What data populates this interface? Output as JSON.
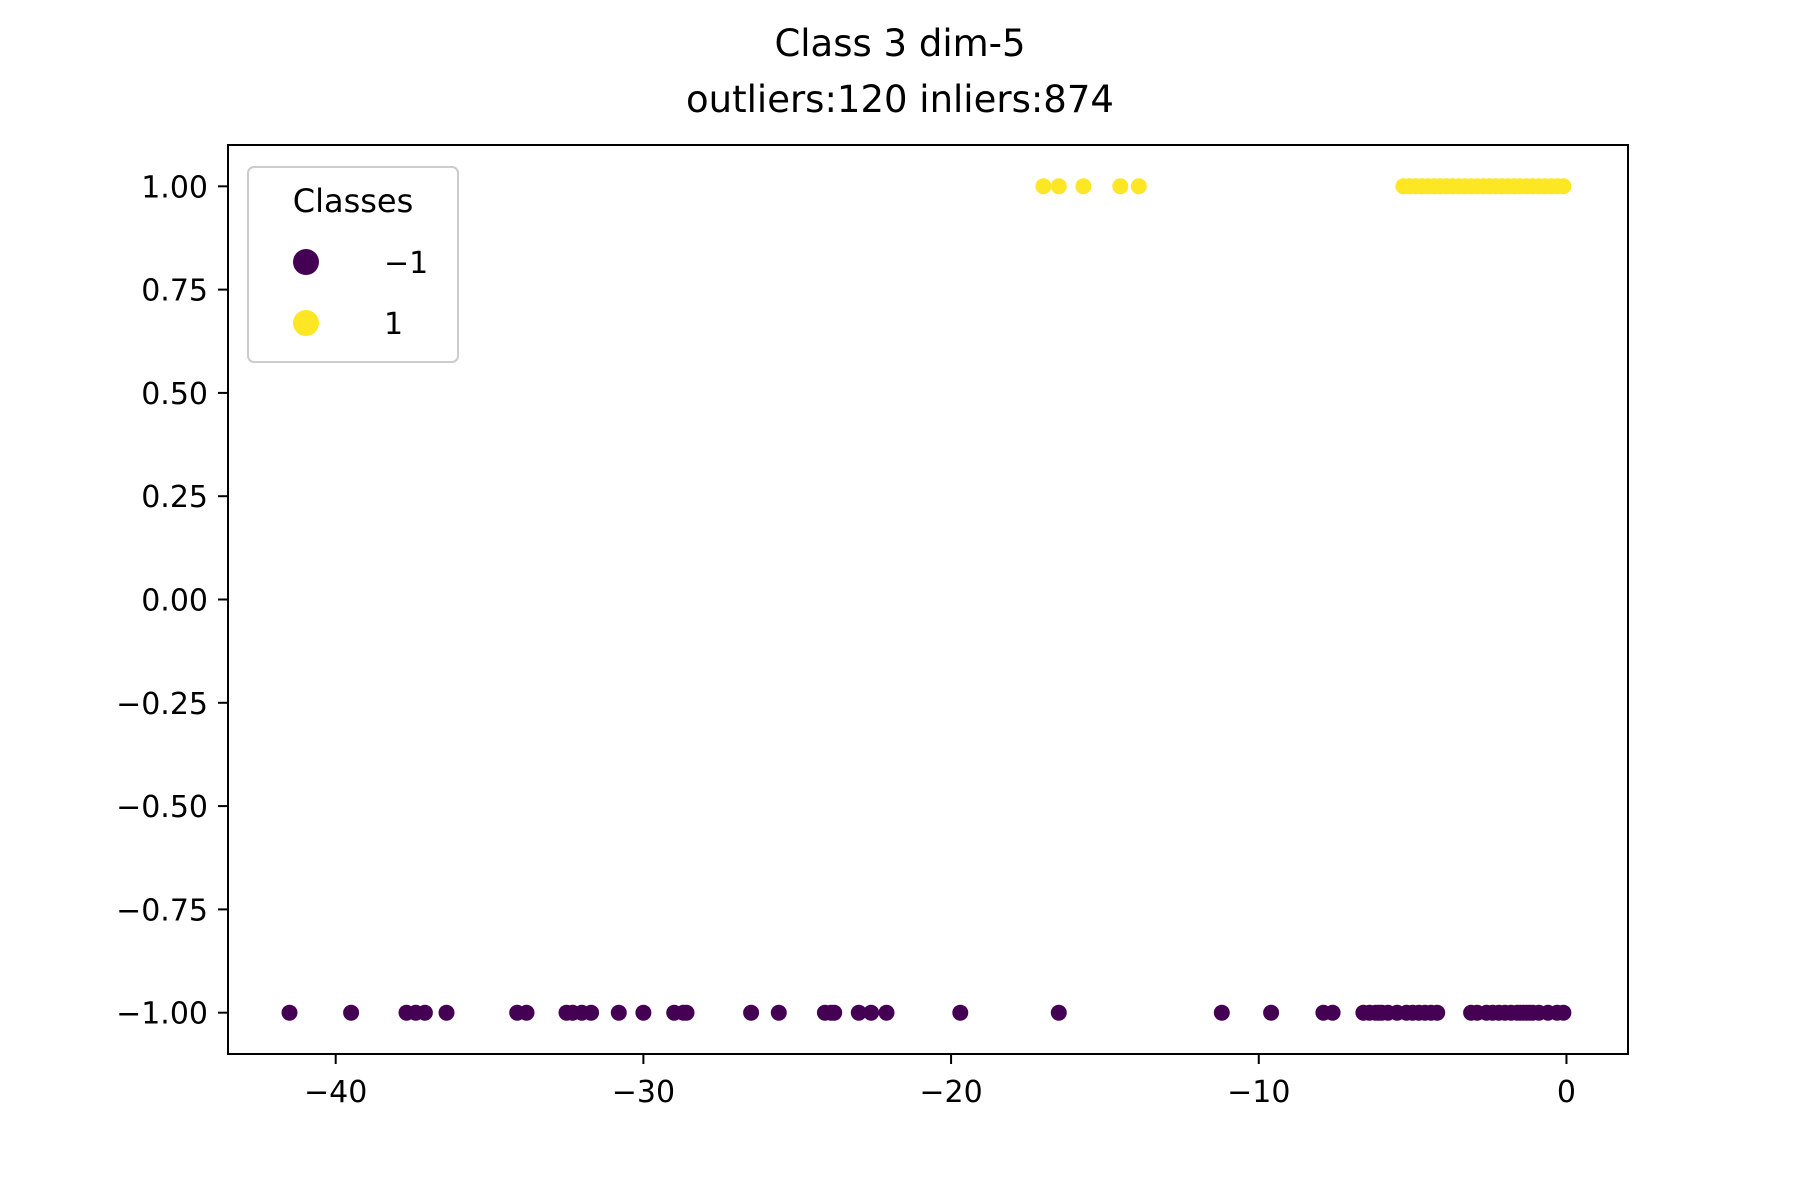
{
  "chart_data": {
    "type": "scatter",
    "title": "Class 3 dim-5",
    "subtitle": "outliers:120  inliers:874",
    "xlim": [
      -43.5,
      2.0
    ],
    "ylim": [
      -1.1,
      1.1
    ],
    "x_ticks": [
      -40,
      -30,
      -20,
      -10,
      0
    ],
    "x_tick_labels": [
      "−40",
      "−30",
      "−20",
      "−10",
      "0"
    ],
    "y_ticks": [
      1.0,
      0.75,
      0.5,
      0.25,
      0.0,
      -0.25,
      -0.5,
      -0.75,
      -1.0
    ],
    "y_tick_labels": [
      "1.00",
      "0.75",
      "0.50",
      "0.25",
      "0.00",
      "−0.25",
      "−0.50",
      "−0.75",
      "−1.00"
    ],
    "grid": false,
    "legend": {
      "title": "Classes",
      "placement": "top-left",
      "entries": [
        {
          "label": "−1",
          "color": "#440154"
        },
        {
          "label": "1",
          "color": "#fde725"
        }
      ]
    },
    "series": [
      {
        "class": -1,
        "color": "#440154",
        "y": -1.0,
        "x": [
          -41.5,
          -39.5,
          -37.7,
          -37.4,
          -37.1,
          -36.4,
          -34.1,
          -33.8,
          -32.5,
          -32.3,
          -32.0,
          -31.7,
          -30.8,
          -30.0,
          -29.0,
          -28.7,
          -28.6,
          -26.5,
          -25.6,
          -24.1,
          -23.9,
          -23.8,
          -23.0,
          -22.6,
          -22.1,
          -19.7,
          -16.5,
          -11.2,
          -9.6,
          -7.9,
          -7.6,
          -6.6,
          -6.4,
          -6.2,
          -6.1,
          -6.0,
          -5.8,
          -5.5,
          -5.2,
          -5.0,
          -4.8,
          -4.6,
          -4.4,
          -4.2,
          -3.1,
          -2.9,
          -2.6,
          -2.4,
          -2.2,
          -2.0,
          -1.8,
          -1.6,
          -1.5,
          -1.4,
          -1.3,
          -1.2,
          -1.1,
          -0.9,
          -0.6,
          -0.3,
          -0.1
        ]
      },
      {
        "class": 1,
        "color": "#fde725",
        "y": 1.0,
        "x": [
          -17.0,
          -16.5,
          -15.7,
          -14.5,
          -13.9,
          -5.3,
          -5.1,
          -4.9,
          -4.7,
          -4.5,
          -4.3,
          -4.1,
          -3.9,
          -3.7,
          -3.5,
          -3.3,
          -3.1,
          -2.9,
          -2.7,
          -2.5,
          -2.3,
          -2.1,
          -1.9,
          -1.7,
          -1.5,
          -1.3,
          -1.1,
          -0.9,
          -0.7,
          -0.5,
          -0.3,
          -0.1
        ]
      }
    ]
  }
}
